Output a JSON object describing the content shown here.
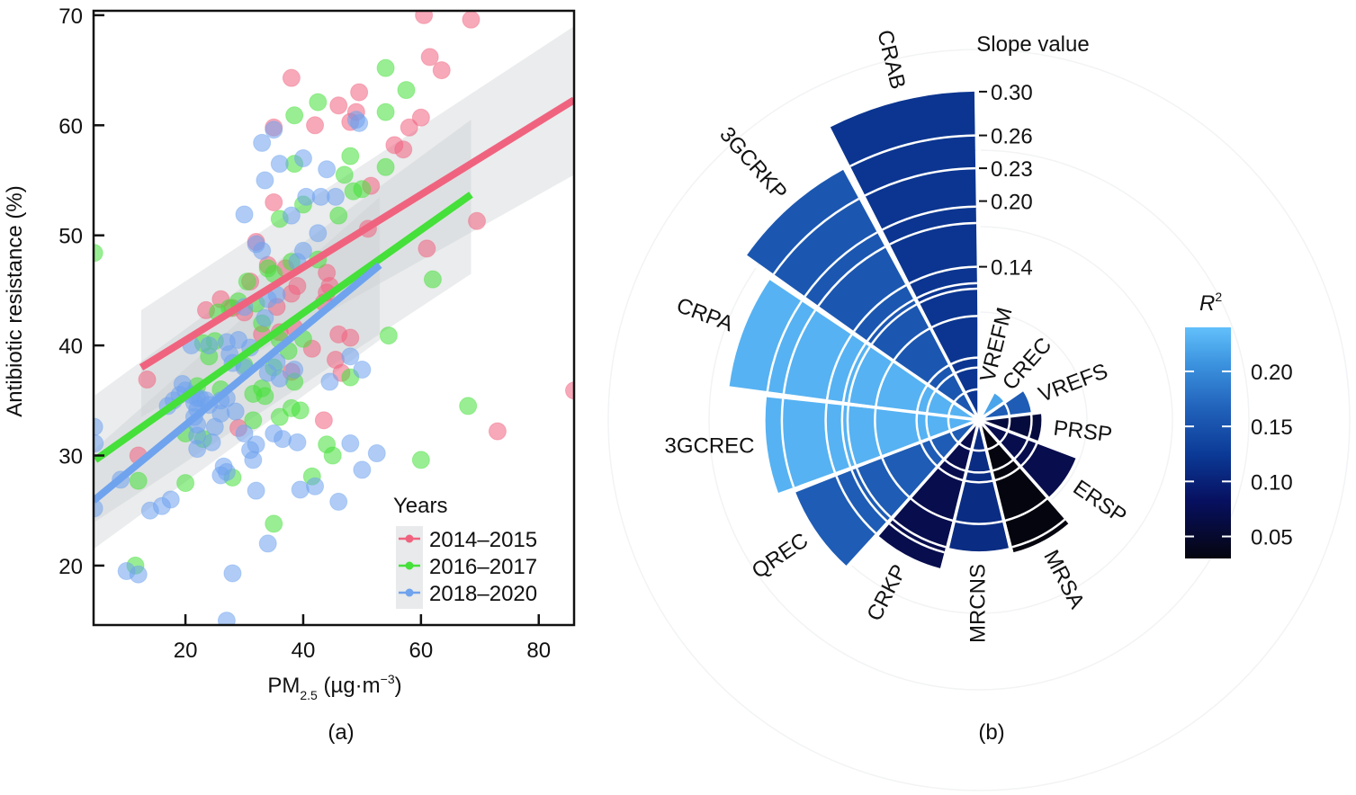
{
  "chart_data": [
    {
      "panel_label": "(a)",
      "type": "scatter",
      "xlabel": "PM",
      "xlabel_sub": "2.5",
      "xlabel_unit": " (µg·m",
      "xlabel_unit_sup": "−3",
      "xlabel_close": ")",
      "ylabel": "Antibiotic resistance (%)",
      "xlim": [
        4.4,
        86
      ],
      "ylim": [
        14.6,
        70.4
      ],
      "xticks": [
        20,
        40,
        60,
        80
      ],
      "yticks": [
        20,
        30,
        40,
        50,
        60,
        70
      ],
      "grid": false,
      "legend": {
        "title": "Years",
        "position": "bottom-right"
      },
      "series": [
        {
          "name": "2014–2015",
          "color": "#f0637f",
          "fit": {
            "x": [
              12.5,
              86
            ],
            "y": [
              38.0,
              62.3
            ],
            "band_lower": [
              33.5,
              55.5
            ],
            "band_upper": [
              43.2,
              69.0
            ]
          },
          "points": [
            [
              60.5,
              70
            ],
            [
              68.5,
              69.6
            ],
            [
              61.5,
              66.2
            ],
            [
              63.5,
              65
            ],
            [
              38,
              64.3
            ],
            [
              49.5,
              63
            ],
            [
              46,
              61.8
            ],
            [
              49,
              61.2
            ],
            [
              48,
              60.3
            ],
            [
              60,
              60.7
            ],
            [
              58,
              59.8
            ],
            [
              42,
              60
            ],
            [
              35,
              59.8
            ],
            [
              55.5,
              58.2
            ],
            [
              57,
              57.8
            ],
            [
              51.5,
              54.5
            ],
            [
              35,
              53
            ],
            [
              51,
              50.6
            ],
            [
              61,
              48.8
            ],
            [
              69.5,
              51.3
            ],
            [
              32,
              49.4
            ],
            [
              34,
              47.3
            ],
            [
              37,
              47
            ],
            [
              39,
              45.4
            ],
            [
              44,
              46.6
            ],
            [
              44.5,
              45.4
            ],
            [
              44,
              44.8
            ],
            [
              31,
              45.8
            ],
            [
              35.5,
              43.5
            ],
            [
              43.5,
              43.9
            ],
            [
              38,
              44.7
            ],
            [
              28,
              43.4
            ],
            [
              30,
              43
            ],
            [
              23.5,
              43.2
            ],
            [
              26,
              44.2
            ],
            [
              33,
              41
            ],
            [
              36,
              41.2
            ],
            [
              38.5,
              41.6
            ],
            [
              41.5,
              39.7
            ],
            [
              46,
              41
            ],
            [
              48,
              40.7
            ],
            [
              45.5,
              38.7
            ],
            [
              46.5,
              37.5
            ],
            [
              38,
              37.6
            ],
            [
              13.5,
              36.9
            ],
            [
              43.5,
              33.2
            ],
            [
              73,
              32.2
            ],
            [
              86,
              35.9
            ],
            [
              12,
              30
            ],
            [
              29,
              32.5
            ]
          ]
        },
        {
          "name": "2016–2017",
          "color": "#45e03a",
          "fit": {
            "x": [
              4.7,
              68.5
            ],
            "y": [
              29.6,
              53.7
            ],
            "band_lower": [
              24.0,
              46.5
            ],
            "band_upper": [
              35.5,
              60.5
            ]
          },
          "points": [
            [
              4.5,
              48.4
            ],
            [
              54,
              65.2
            ],
            [
              57.5,
              63.2
            ],
            [
              42.5,
              62.1
            ],
            [
              38.5,
              60.9
            ],
            [
              54,
              61.2
            ],
            [
              48,
              57.2
            ],
            [
              38.5,
              56.5
            ],
            [
              54,
              56.2
            ],
            [
              47,
              55.5
            ],
            [
              50,
              54.2
            ],
            [
              48.5,
              54
            ],
            [
              46,
              51.8
            ],
            [
              36,
              51.5
            ],
            [
              40,
              52.8
            ],
            [
              38,
              47.6
            ],
            [
              42.5,
              47.8
            ],
            [
              34,
              47
            ],
            [
              35,
              46.5
            ],
            [
              30.5,
              45.8
            ],
            [
              32,
              43.8
            ],
            [
              25.5,
              43
            ],
            [
              27.5,
              43.4
            ],
            [
              29,
              44
            ],
            [
              33,
              42
            ],
            [
              25,
              40.4
            ],
            [
              36,
              40.5
            ],
            [
              40,
              40.6
            ],
            [
              54.5,
              40.9
            ],
            [
              37.5,
              39.5
            ],
            [
              23,
              40.2
            ],
            [
              35,
              38
            ],
            [
              30,
              38.2
            ],
            [
              48,
              37.1
            ],
            [
              33,
              36.1
            ],
            [
              22,
              36.3
            ],
            [
              26,
              36
            ],
            [
              38.5,
              36.7
            ],
            [
              31.5,
              35.6
            ],
            [
              33.5,
              35.4
            ],
            [
              38,
              34.3
            ],
            [
              39.5,
              34.1
            ],
            [
              36,
              33.5
            ],
            [
              31.5,
              33.2
            ],
            [
              20,
              32
            ],
            [
              23,
              31.5
            ],
            [
              44,
              31
            ],
            [
              45,
              30
            ],
            [
              60,
              29.6
            ],
            [
              41.5,
              28.1
            ],
            [
              20,
              27.5
            ],
            [
              28,
              28
            ],
            [
              12,
              27.7
            ],
            [
              68,
              34.5
            ],
            [
              62,
              46
            ],
            [
              35,
              23.8
            ],
            [
              11.5,
              20
            ],
            [
              24,
              39
            ]
          ]
        },
        {
          "name": "2018–2020",
          "color": "#6fa3ee",
          "fit": {
            "x": [
              4.4,
              53
            ],
            "y": [
              25.9,
              47.3
            ],
            "band_lower": [
              21.5,
              40.5
            ],
            "band_upper": [
              30.5,
              53.5
            ]
          },
          "points": [
            [
              33,
              58.4
            ],
            [
              35,
              59.6
            ],
            [
              49,
              60.5
            ],
            [
              49.5,
              60.2
            ],
            [
              36,
              56.5
            ],
            [
              33.5,
              55
            ],
            [
              40,
              57
            ],
            [
              44,
              56
            ],
            [
              40.5,
              53.5
            ],
            [
              43,
              53.5
            ],
            [
              45.5,
              53.5
            ],
            [
              38,
              51.8
            ],
            [
              42.5,
              50.2
            ],
            [
              30,
              51.9
            ],
            [
              32,
              49.2
            ],
            [
              33,
              48.6
            ],
            [
              40,
              48.6
            ],
            [
              39,
              47.6
            ],
            [
              34,
              44.2
            ],
            [
              35.5,
              44.6
            ],
            [
              30,
              43.5
            ],
            [
              33.5,
              42.5
            ],
            [
              27,
              40.3
            ],
            [
              29,
              40.5
            ],
            [
              31,
              39.8
            ],
            [
              21,
              40
            ],
            [
              24,
              40
            ],
            [
              27.5,
              39.2
            ],
            [
              28,
              38.4
            ],
            [
              30,
              38
            ],
            [
              34,
              37.5
            ],
            [
              35.5,
              38.5
            ],
            [
              36,
              37
            ],
            [
              38.5,
              37.8
            ],
            [
              48,
              39
            ],
            [
              50,
              37.8
            ],
            [
              44.5,
              36.7
            ],
            [
              19.5,
              36.5
            ],
            [
              20,
              35.9
            ],
            [
              21,
              35.5
            ],
            [
              22,
              35.2
            ],
            [
              22.5,
              35.2
            ],
            [
              23.5,
              35
            ],
            [
              21.5,
              34.8
            ],
            [
              19,
              35.5
            ],
            [
              18,
              35
            ],
            [
              17,
              34.5
            ],
            [
              22,
              34.2
            ],
            [
              24,
              34.6
            ],
            [
              26,
              35
            ],
            [
              27,
              35.2
            ],
            [
              26,
              33.8
            ],
            [
              28.5,
              34
            ],
            [
              21.5,
              33.5
            ],
            [
              22,
              32.8
            ],
            [
              25,
              32.6
            ],
            [
              30,
              32
            ],
            [
              22,
              31.8
            ],
            [
              24.5,
              31.2
            ],
            [
              32,
              31
            ],
            [
              35,
              32
            ],
            [
              36.5,
              31.5
            ],
            [
              39,
              31.2
            ],
            [
              48,
              31.1
            ],
            [
              52.5,
              30.2
            ],
            [
              22,
              30.6
            ],
            [
              31,
              30.5
            ],
            [
              50,
              28.7
            ],
            [
              31.5,
              29.6
            ],
            [
              26.5,
              29
            ],
            [
              27,
              28.5
            ],
            [
              26,
              28.2
            ],
            [
              32,
              26.8
            ],
            [
              39.5,
              26.9
            ],
            [
              42,
              27.2
            ],
            [
              46,
              25.8
            ],
            [
              4.5,
              32.6
            ],
            [
              4.6,
              31.1
            ],
            [
              4.5,
              25.2
            ],
            [
              9,
              27.8
            ],
            [
              14,
              25
            ],
            [
              16,
              25.4
            ],
            [
              17.5,
              26
            ],
            [
              10,
              19.5
            ],
            [
              12,
              19.2
            ],
            [
              28,
              19.3
            ],
            [
              34,
              22
            ],
            [
              27,
              15
            ]
          ]
        }
      ]
    },
    {
      "panel_label": "(b)",
      "type": "bar",
      "subtype": "polar-bar (rose)",
      "radial_title": "Slope value",
      "radial_ticks": [
        0.14,
        0.2,
        0.23,
        0.26,
        0.3
      ],
      "colorbar": {
        "title": "R",
        "title_sup": "2",
        "ticks": [
          0.05,
          0.1,
          0.15,
          0.2
        ],
        "range": [
          0.03,
          0.24
        ],
        "low_color": "#05050f",
        "high_color": "#62c0fb"
      },
      "categories": [
        "VREFM",
        "CREC",
        "VREFS",
        "PRSP",
        "ERSP",
        "MRSA",
        "MRCNS",
        "CRKP",
        "QREC",
        "3GCREC",
        "CRPA",
        "3GCRKP",
        "CRAB"
      ],
      "values": [
        0.005,
        0.028,
        0.048,
        0.057,
        0.095,
        0.125,
        0.12,
        0.14,
        0.18,
        0.195,
        0.23,
        0.26,
        0.3
      ],
      "r2": [
        0.07,
        0.22,
        0.16,
        0.06,
        0.07,
        0.03,
        0.11,
        0.07,
        0.16,
        0.23,
        0.23,
        0.155,
        0.12
      ]
    }
  ]
}
